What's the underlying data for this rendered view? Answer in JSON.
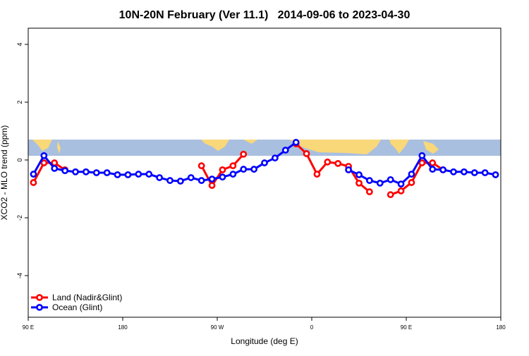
{
  "chart_data": {
    "type": "line",
    "title": "10N-20N February (Ver 11.1)   2014-09-06 to 2023-04-30",
    "x_label": "Longitude (deg E)",
    "y_label": "XCO2 - MLO trend (ppm)",
    "x": [
      95,
      105,
      115,
      125,
      135,
      145,
      155,
      165,
      175,
      185,
      195,
      205,
      215,
      225,
      235,
      245,
      255,
      265,
      275,
      285,
      295,
      305,
      315,
      325,
      335,
      345,
      355,
      365,
      375,
      385,
      395,
      405,
      415,
      425,
      435,
      445,
      455,
      465,
      475,
      485,
      495,
      505,
      515,
      525,
      535
    ],
    "series": [
      {
        "name": "Land (Nadir&Glint)",
        "color": "#ff0000",
        "values": [
          -0.78,
          -0.1,
          -0.1,
          -0.34,
          null,
          null,
          null,
          null,
          null,
          null,
          null,
          null,
          null,
          null,
          null,
          null,
          -0.2,
          -0.88,
          -0.34,
          -0.2,
          0.2,
          null,
          null,
          null,
          null,
          0.56,
          0.22,
          -0.49,
          -0.07,
          -0.12,
          -0.22,
          -0.8,
          -1.1,
          null,
          -1.2,
          -1.07,
          -0.78,
          -0.1,
          -0.1,
          -0.34,
          null,
          null,
          null,
          null,
          null
        ]
      },
      {
        "name": "Ocean (Glint)",
        "color": "#0000ff",
        "values": [
          -0.49,
          0.15,
          -0.29,
          -0.37,
          -0.41,
          -0.41,
          -0.44,
          -0.44,
          -0.51,
          -0.51,
          -0.49,
          -0.49,
          -0.61,
          -0.71,
          -0.73,
          -0.61,
          -0.71,
          -0.66,
          -0.59,
          -0.49,
          -0.32,
          -0.32,
          -0.1,
          0.07,
          0.34,
          0.61,
          null,
          null,
          null,
          null,
          -0.34,
          -0.51,
          -0.71,
          -0.8,
          -0.68,
          -0.83,
          -0.49,
          0.15,
          -0.32,
          -0.34,
          -0.41,
          -0.41,
          -0.44,
          -0.44,
          -0.51
        ]
      }
    ],
    "xlim": [
      90,
      540
    ],
    "xticks": [
      {
        "value": 90,
        "label": "90 E"
      },
      180,
      {
        "value": 270,
        "label": "90 W"
      },
      {
        "value": 360,
        "label": "0"
      },
      {
        "value": 450,
        "label": "90 E"
      },
      {
        "value": 540,
        "label": "180"
      }
    ],
    "ylim": [
      -5.44,
      4.56
    ],
    "yticks": [
      -4,
      -2,
      0,
      2,
      4
    ],
    "legend": "bottom-left"
  }
}
